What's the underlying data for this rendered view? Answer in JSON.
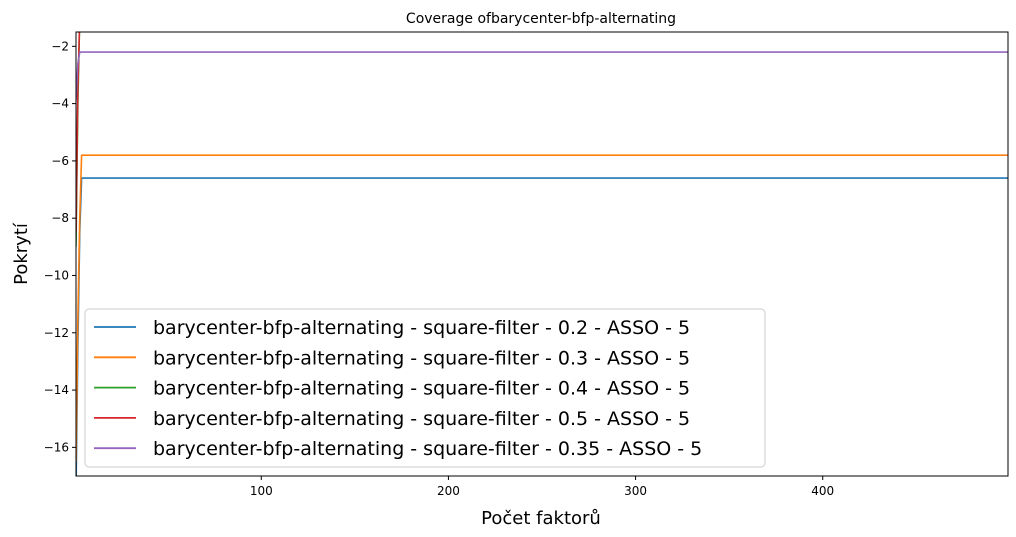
{
  "chart_data": {
    "type": "line",
    "title": "Coverage ofbarycenter-bfp-alternating",
    "xlabel": "Počet faktorů",
    "ylabel": "Pokrytí",
    "xlim": [
      1,
      499
    ],
    "ylim": [
      -17,
      -1.5
    ],
    "xticks": [
      100,
      200,
      300,
      400
    ],
    "yticks": [
      -16,
      -14,
      -12,
      -10,
      -8,
      -6,
      -4,
      -2
    ],
    "grid": false,
    "legend_position": "lower-left",
    "series": [
      {
        "name": "barycenter-bfp-alternating - square-filter - 0.2 - ASSO - 5",
        "color": "#1f77b4",
        "x": [
          1,
          2,
          3,
          4,
          499
        ],
        "y": [
          -17.5,
          -12.5,
          -8.5,
          -6.6,
          -6.6
        ]
      },
      {
        "name": "barycenter-bfp-alternating - square-filter - 0.3 - ASSO - 5",
        "color": "#ff7f0e",
        "x": [
          1,
          2,
          3,
          4,
          499
        ],
        "y": [
          -16.5,
          -11.5,
          -8.0,
          -5.8,
          -5.8
        ]
      },
      {
        "name": "barycenter-bfp-alternating - square-filter - 0.4 - ASSO - 5",
        "color": "#2ca02c",
        "x": [
          1,
          2,
          3,
          499
        ],
        "y": [
          -9.0,
          -4.0,
          -1.0,
          -1.0
        ]
      },
      {
        "name": "barycenter-bfp-alternating - square-filter - 0.5 - ASSO - 5",
        "color": "#d62728",
        "x": [
          1,
          2,
          3,
          499
        ],
        "y": [
          -8.5,
          -3.5,
          -1.0,
          -1.0
        ]
      },
      {
        "name": "barycenter-bfp-alternating - square-filter - 0.35 - ASSO - 5",
        "color": "#9467bd",
        "x": [
          1,
          2,
          3,
          499
        ],
        "y": [
          -3.9,
          -2.6,
          -2.2,
          -2.2
        ]
      }
    ]
  }
}
